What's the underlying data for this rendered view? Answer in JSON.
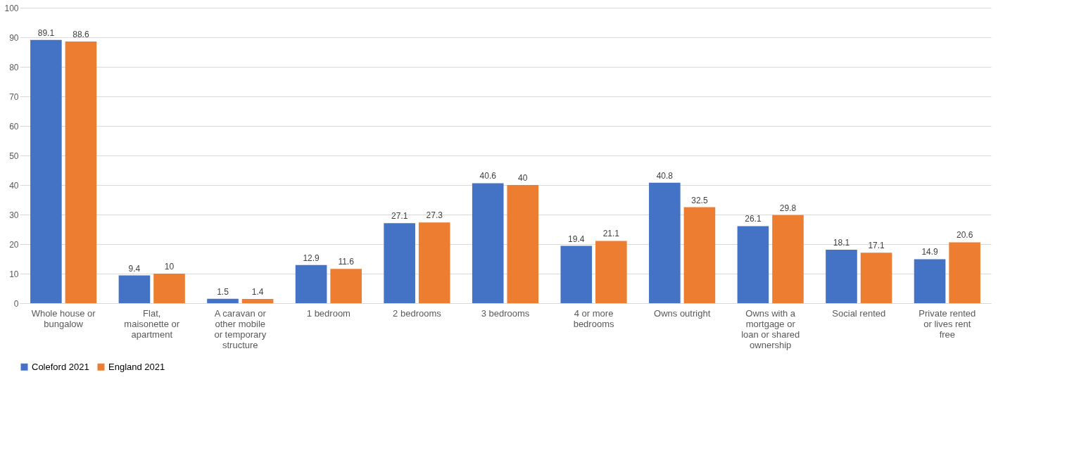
{
  "chart_data": {
    "type": "bar",
    "categories": [
      "Whole house or bungalow",
      "Flat, maisonette or apartment",
      "A caravan or other mobile or temporary structure",
      "1 bedroom",
      "2 bedrooms",
      "3 bedrooms",
      "4 or more bedrooms",
      "Owns outright",
      "Owns with a mortgage or loan or shared ownership",
      "Social rented",
      "Private rented or lives rent free"
    ],
    "series": [
      {
        "name": "Coleford 2021",
        "color": "#4472c4",
        "values": [
          89.1,
          9.4,
          1.5,
          12.9,
          27.1,
          40.6,
          19.4,
          40.8,
          26.1,
          18.1,
          14.9
        ]
      },
      {
        "name": "England 2021",
        "color": "#ed7d31",
        "values": [
          88.6,
          10,
          1.4,
          11.6,
          27.3,
          40,
          21.1,
          32.5,
          29.8,
          17.1,
          20.6
        ]
      }
    ],
    "ylim": [
      0,
      100
    ],
    "yticks": [
      0,
      10,
      20,
      30,
      40,
      50,
      60,
      70,
      80,
      90,
      100
    ],
    "grid": "y",
    "legend": "bottom",
    "data_labels": true
  }
}
